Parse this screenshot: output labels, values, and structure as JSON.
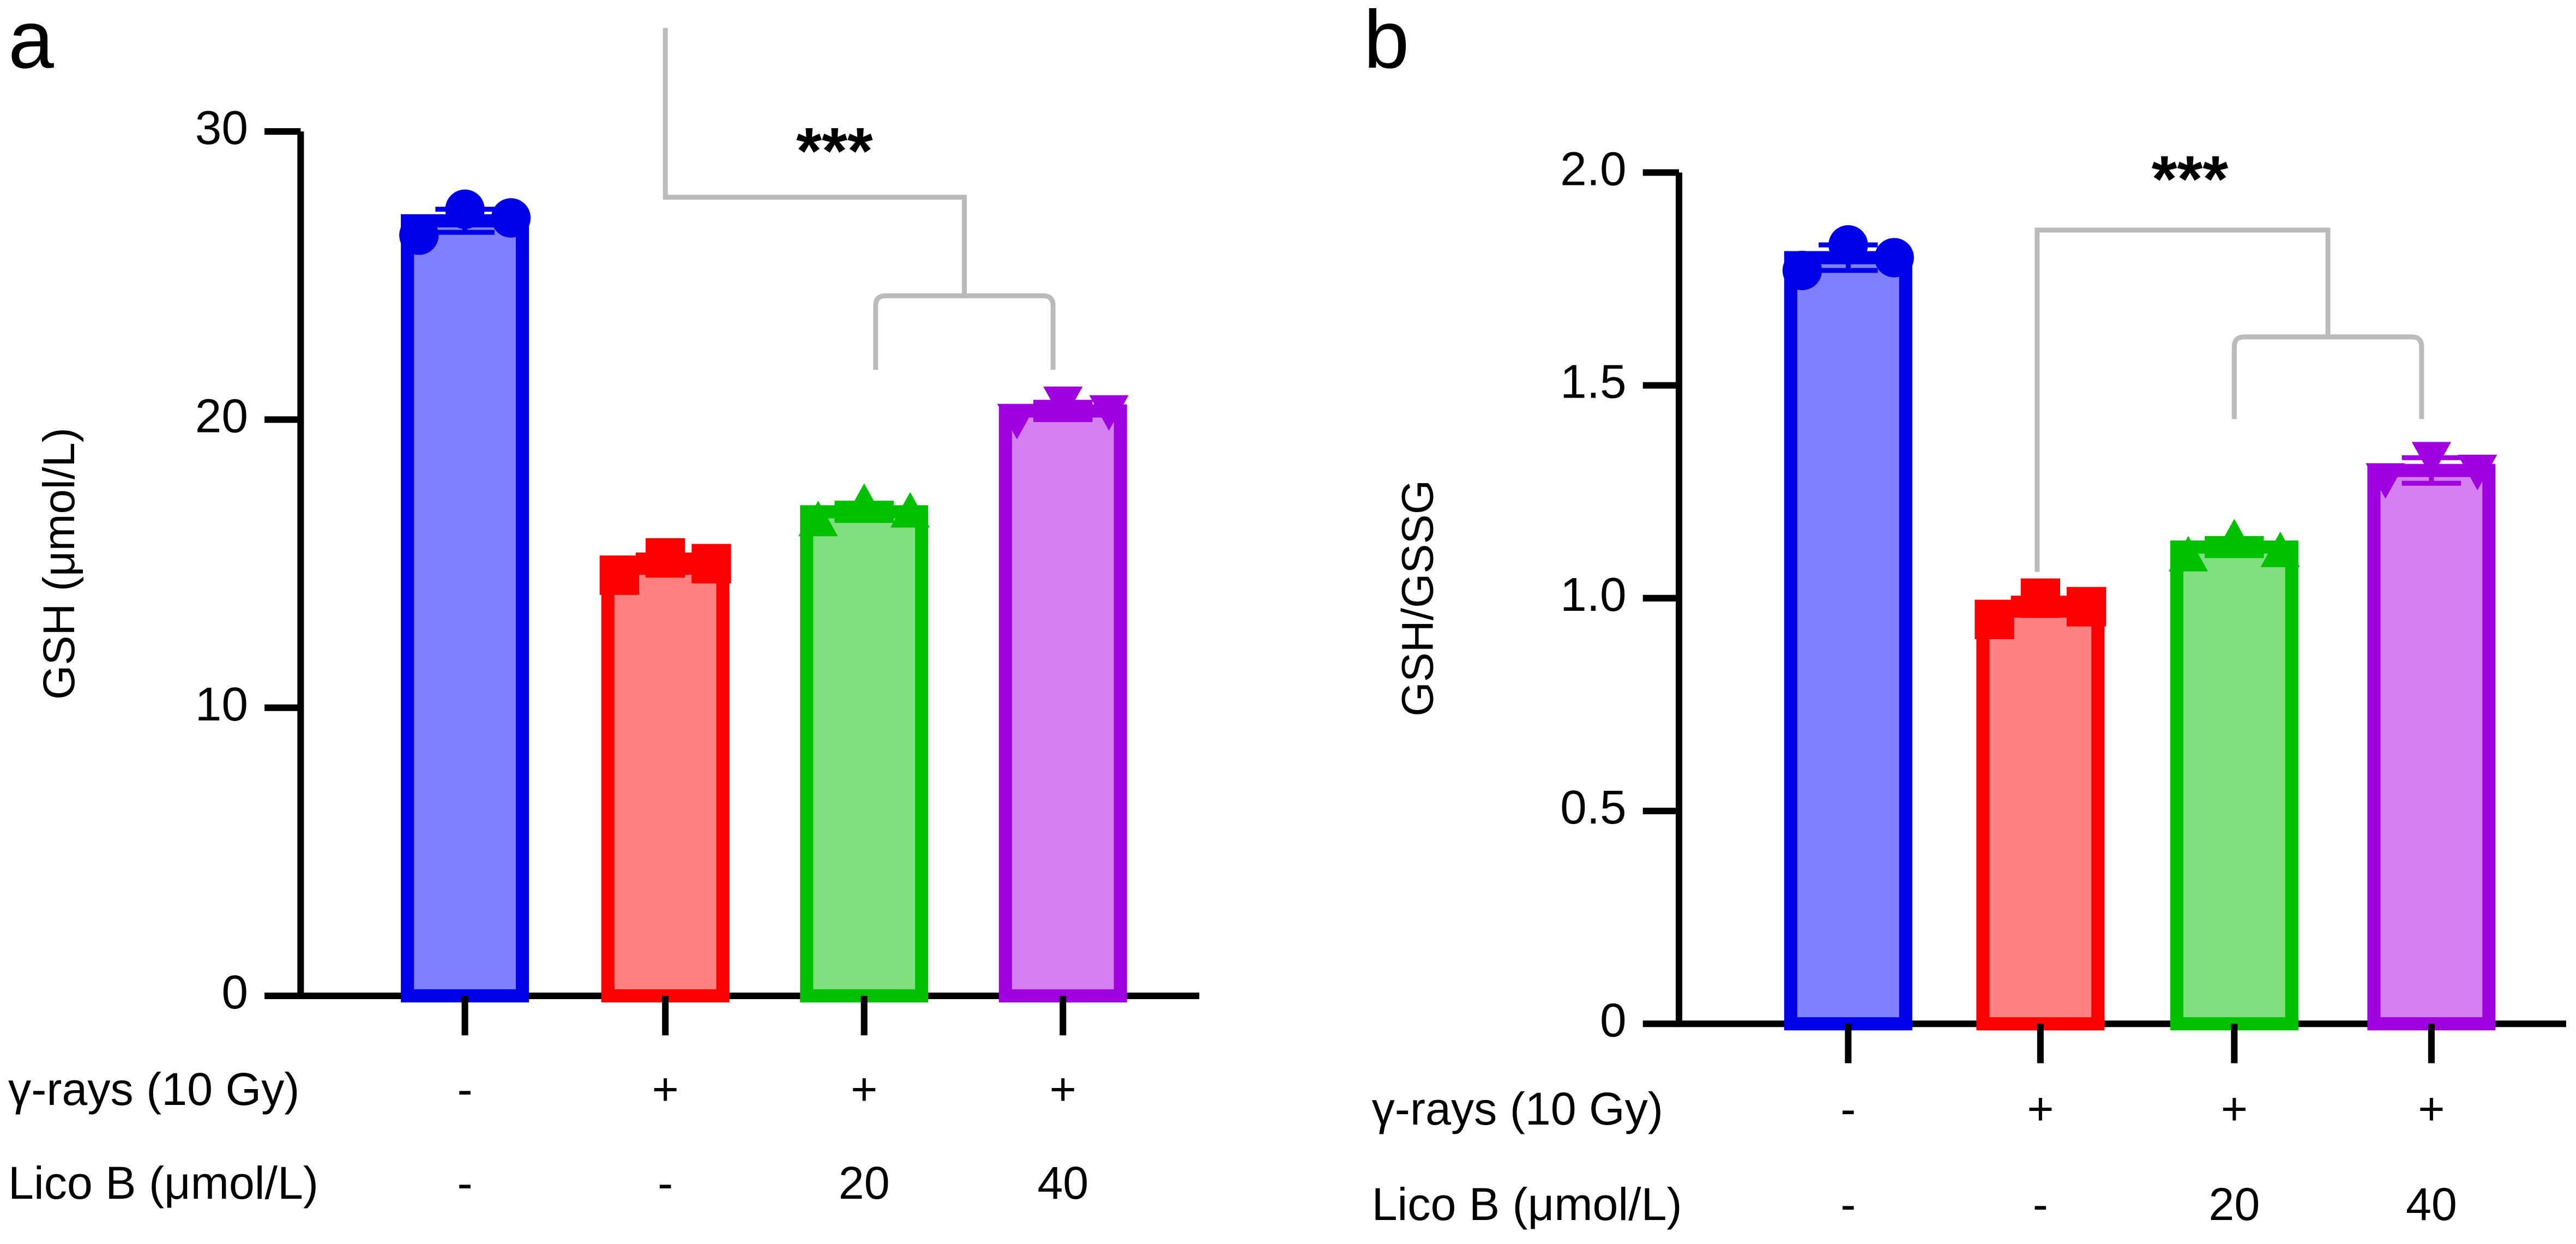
{
  "chart_data": [
    {
      "type": "bar",
      "panel": "a",
      "ylabel": "GSH (μmol/L)",
      "annotation": "***",
      "ylim": [
        0,
        30
      ],
      "yticks": [
        0,
        10,
        20,
        30
      ],
      "values": [
        26.9,
        15.0,
        16.8,
        20.3
      ],
      "errors": [
        0.4,
        0.3,
        0.3,
        0.3
      ],
      "points": [
        [
          26.4,
          27.3,
          27.0
        ],
        [
          14.6,
          15.2,
          15.0
        ],
        [
          16.5,
          17.1,
          16.8
        ],
        [
          20.0,
          20.6,
          20.3
        ]
      ],
      "colors": [
        "#0000e8",
        "#ff0000",
        "#00c000",
        "#a000e0"
      ],
      "fill_colors": [
        "#8080ff",
        "#ff8080",
        "#80e080",
        "#d580f0"
      ],
      "rows": [
        {
          "label": "γ-rays (10 Gy)",
          "values": [
            "-",
            "+",
            "+",
            "+"
          ]
        },
        {
          "label": "Lico B (μmol/L)",
          "values": [
            "-",
            "-",
            "20",
            "40"
          ]
        }
      ]
    },
    {
      "type": "bar",
      "panel": "b",
      "ylabel": "GSH/GSSG",
      "annotation": "***",
      "ylim": [
        0,
        2
      ],
      "yticks": [
        0,
        0.5,
        {
          "value": 1,
          "label": "1.0"
        },
        1.5,
        {
          "value": 2,
          "label": "2.0"
        }
      ],
      "values": [
        1.8,
        0.98,
        1.12,
        1.3
      ],
      "errors": [
        0.03,
        0.02,
        0.02,
        0.03
      ],
      "points": [
        [
          1.77,
          1.83,
          1.8
        ],
        [
          0.95,
          1.0,
          0.98
        ],
        [
          1.1,
          1.14,
          1.11
        ],
        [
          1.28,
          1.33,
          1.3
        ]
      ],
      "colors": [
        "#0000e8",
        "#ff0000",
        "#00c000",
        "#a000e0"
      ],
      "fill_colors": [
        "#8080ff",
        "#ff8080",
        "#80e080",
        "#d580f0"
      ],
      "rows": [
        {
          "label": "γ-rays (10 Gy)",
          "values": [
            "-",
            "+",
            "+",
            "+"
          ]
        },
        {
          "label": "Lico B (μmol/L)",
          "values": [
            "-",
            "-",
            "20",
            "40"
          ]
        }
      ]
    }
  ]
}
